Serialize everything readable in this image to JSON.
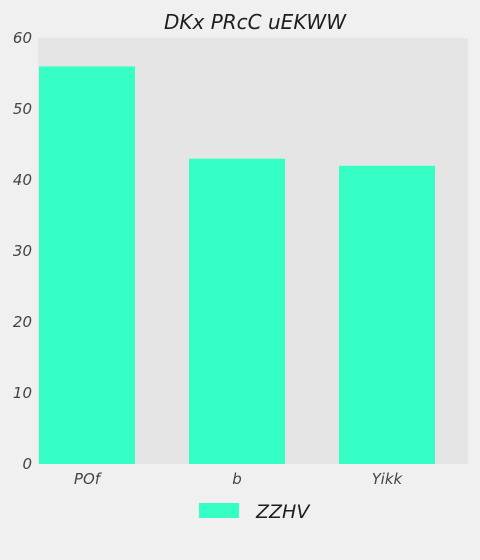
{
  "colors": {
    "page_background": "#f0f0f0",
    "plot_background": "#e5e5e5",
    "bar": "#36ffc5"
  },
  "chart_data": {
    "type": "bar",
    "title": "DKx PRcC uEKWW",
    "xlabel": "",
    "ylabel": "",
    "categories": [
      "POf",
      "b",
      "Yikk"
    ],
    "series": [
      {
        "name": "ZZHV",
        "values": [
          56,
          43,
          42
        ]
      }
    ],
    "ylim": [
      0,
      60
    ],
    "yticks": [
      0,
      10,
      20,
      30,
      40,
      50,
      60
    ],
    "grid": false,
    "legend_position": "bottom-center"
  }
}
